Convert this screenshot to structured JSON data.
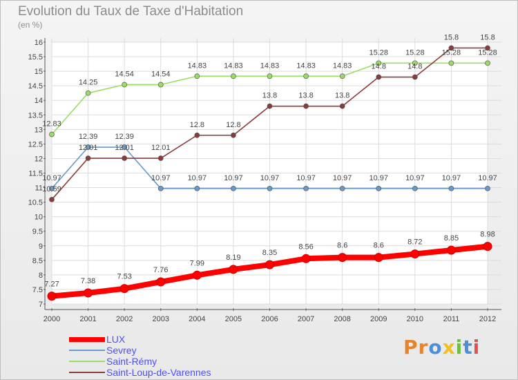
{
  "chart_data": {
    "type": "line",
    "title": "Evolution du Taux de Taxe d'Habitation",
    "subtitle": "(en %)",
    "x": [
      "2000",
      "2001",
      "2002",
      "2003",
      "2004",
      "2005",
      "2006",
      "2007",
      "2008",
      "2009",
      "2010",
      "2011",
      "2012"
    ],
    "ylim": [
      7,
      16
    ],
    "yticks": [
      "7",
      "7.5",
      "8",
      "8.5",
      "9",
      "9.5",
      "10",
      "10.5",
      "11",
      "11.5",
      "12",
      "12.5",
      "13",
      "13.5",
      "14",
      "14.5",
      "15",
      "15.5",
      "16"
    ],
    "grid": true,
    "series": [
      {
        "name": "LUX",
        "color": "#ff0000",
        "values": [
          7.27,
          7.38,
          7.53,
          7.76,
          7.99,
          8.19,
          8.35,
          8.56,
          8.6,
          8.6,
          8.72,
          8.85,
          8.98
        ],
        "labels": [
          "7.27",
          "7.38",
          "7.53",
          "7.76",
          "7.99",
          "8.19",
          "8.35",
          "8.56",
          "8.6",
          "8.6",
          "8.72",
          "8.85",
          "8.98"
        ]
      },
      {
        "name": "Sevrey",
        "color": "#6699cc",
        "values": [
          10.97,
          12.39,
          12.39,
          10.97,
          10.97,
          10.97,
          10.97,
          10.97,
          10.97,
          10.97,
          10.97,
          10.97,
          10.97
        ],
        "labels": [
          "10.97",
          "12.39",
          "12.39",
          "10.97",
          "10.97",
          "10.97",
          "10.97",
          "10.97",
          "10.97",
          "10.97",
          "10.97",
          "10.97",
          "10.97"
        ]
      },
      {
        "name": "Saint-Rémy",
        "color": "#99dd66",
        "values": [
          12.83,
          14.25,
          14.54,
          14.54,
          14.83,
          14.83,
          14.83,
          14.83,
          14.83,
          15.28,
          15.28,
          15.28,
          15.28
        ],
        "labels": [
          "12.83",
          "14.25",
          "14.54",
          "14.54",
          "14.83",
          "14.83",
          "14.83",
          "14.83",
          "14.83",
          "15.28",
          "15.28",
          "15.28",
          "15.28"
        ]
      },
      {
        "name": "Saint-Loup-de-Varennes",
        "color": "#8b3a3a",
        "values": [
          10.59,
          12.01,
          12.01,
          12.01,
          12.8,
          12.8,
          13.8,
          13.8,
          13.8,
          14.8,
          14.8,
          15.8,
          15.8
        ],
        "labels": [
          "10.59",
          "12.01",
          "12.01",
          "12.01",
          "12.8",
          "12.8",
          "13.8",
          "13.8",
          "13.8",
          "14.8",
          "14.8",
          "15.8",
          "15.8"
        ]
      }
    ]
  },
  "logo": {
    "letters": [
      "P",
      "r",
      "o",
      "x",
      "i",
      "t",
      "i"
    ]
  }
}
